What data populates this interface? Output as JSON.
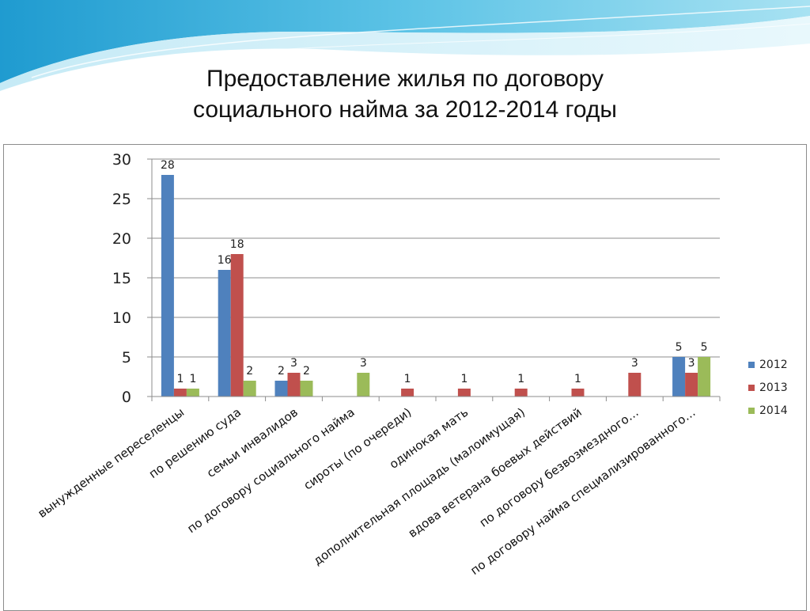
{
  "slide": {
    "title_line1": "Предоставление жилья по договору",
    "title_line2": "социального найма за 2012-2014 годы"
  },
  "chart_data": {
    "type": "bar",
    "title": "",
    "xlabel": "",
    "ylabel": "",
    "ylim": [
      0,
      30
    ],
    "yticks": [
      0,
      5,
      10,
      15,
      20,
      25,
      30
    ],
    "grid": true,
    "legend_position": "right",
    "categories": [
      "вынужденные переселенцы",
      "по решению суда",
      "семьи инвалидов",
      "по договору социального найма",
      "сироты (по очереди)",
      "одинокая мать",
      "дополнительная площадь (малоимущая)",
      "вдова ветерана боевых действий",
      "по договору безвозмездного…",
      "по договору найма специализированного…"
    ],
    "series": [
      {
        "name": "2012",
        "color": "#4f81bd",
        "values": [
          28,
          16,
          2,
          null,
          null,
          null,
          null,
          null,
          null,
          5
        ]
      },
      {
        "name": "2013",
        "color": "#c0504d",
        "values": [
          1,
          18,
          3,
          null,
          1,
          1,
          1,
          1,
          3,
          3
        ]
      },
      {
        "name": "2014",
        "color": "#9bbb59",
        "values": [
          1,
          2,
          2,
          3,
          null,
          null,
          null,
          null,
          null,
          5
        ]
      }
    ]
  }
}
